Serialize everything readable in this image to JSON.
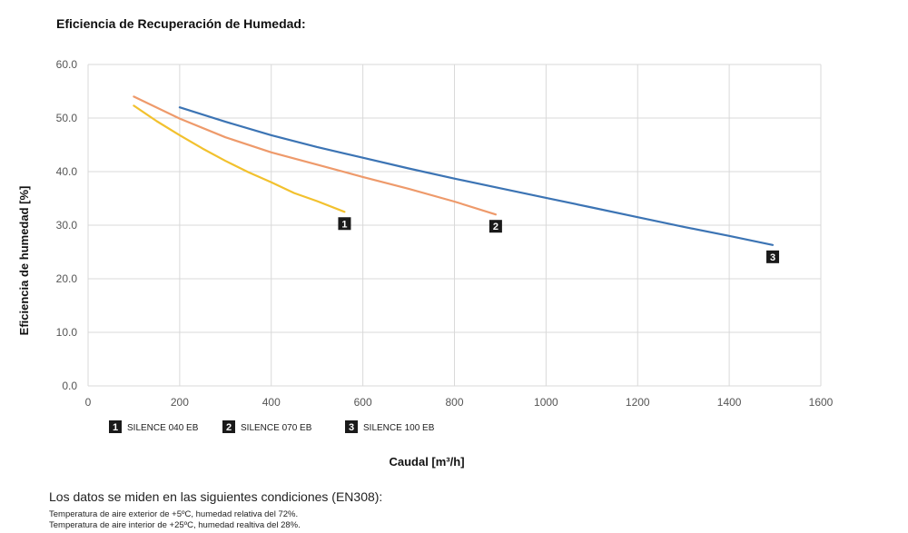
{
  "chart_data": {
    "type": "line",
    "title": "Eficiencia de Recuperación de Humedad:",
    "xlabel": "Caudal  [m³/h]",
    "ylabel": "Eficiencia de humedad [%]",
    "xlim": [
      0,
      1600
    ],
    "ylim": [
      0,
      60
    ],
    "x_ticks": [
      "0",
      "200",
      "400",
      "600",
      "800",
      "1000",
      "1200",
      "1400",
      "1600"
    ],
    "y_ticks": [
      "0.0",
      "10.0",
      "20.0",
      "30.0",
      "40.0",
      "50.0",
      "60.0"
    ],
    "grid": true,
    "legend_position": "bottom-left",
    "series": [
      {
        "name": "SILENCE 040 EB",
        "badge": "1",
        "color": "#f2c12e",
        "x": [
          100,
          150,
          200,
          250,
          300,
          350,
          400,
          450,
          500,
          560
        ],
        "y": [
          52.3,
          49.4,
          46.8,
          44.3,
          42.0,
          39.9,
          38.0,
          36.0,
          34.5,
          32.5
        ]
      },
      {
        "name": "SILENCE 070 EB",
        "badge": "2",
        "color": "#ee9a6b",
        "x": [
          100,
          200,
          300,
          400,
          500,
          600,
          700,
          800,
          890
        ],
        "y": [
          54.0,
          49.9,
          46.4,
          43.6,
          41.3,
          39.0,
          36.8,
          34.4,
          32.0
        ]
      },
      {
        "name": "SILENCE 100 EB",
        "badge": "3",
        "color": "#3c74b4",
        "x": [
          200,
          300,
          400,
          500,
          600,
          700,
          800,
          900,
          1000,
          1100,
          1200,
          1300,
          1400,
          1495
        ],
        "y": [
          52.0,
          49.3,
          46.8,
          44.6,
          42.6,
          40.6,
          38.7,
          36.9,
          35.1,
          33.3,
          31.5,
          29.7,
          28.0,
          26.3
        ]
      }
    ]
  },
  "conditions": {
    "heading": "Los datos se miden en las siguientes condiciones (EN308):",
    "lines": [
      "Temperatura de aire exterior de +5ºC, humedad relativa del 72%.",
      "Temperatura de aire interior de +25ºC, humedad realtiva del 28%."
    ]
  }
}
